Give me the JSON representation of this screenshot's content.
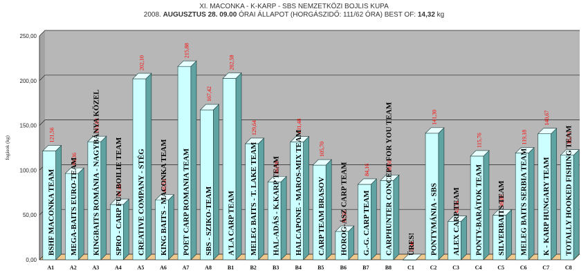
{
  "chart_data": {
    "type": "bar",
    "title": "XI. MACONKA - K-KARP - SBS NEMZETKÖZI BOJLIS KUPA",
    "subtitle": {
      "prefix": "2008.",
      "date": "AUGUSZTUS 28. 09.00",
      "middle": "ÓRAI ÁLLAPOT (HORGÁSZIDŐ: 111/62 ÓRA) BEST OF:",
      "best": "14,32",
      "unit": "kg"
    },
    "ylabel": "fogások (kg)",
    "xlabel": "",
    "ylim": [
      0,
      250
    ],
    "ytick_step": 50,
    "ytick_labels": [
      "0,00",
      "50,00",
      "100,00",
      "150,00",
      "200,00",
      "250,00"
    ],
    "grid": true,
    "categories": [
      "A1",
      "A2",
      "A3",
      "A4",
      "A5",
      "A6",
      "A7",
      "A8",
      "B1",
      "B2",
      "B3",
      "B4",
      "B5",
      "B6",
      "B7",
      "B8",
      "C1",
      "C2",
      "C3",
      "C4",
      "C5",
      "C6",
      "C7",
      "C8"
    ],
    "values": [
      121.56,
      96.36,
      131.82,
      61.68,
      202.1,
      66.56,
      215.88,
      167.42,
      202.58,
      129.64,
      86.9,
      131.48,
      105.7,
      31.58,
      84.16,
      88.5,
      0.0,
      141.3,
      42.74,
      115.76,
      49.82,
      119.18,
      140.67,
      116.76
    ],
    "value_labels": [
      "121,56",
      "96,36",
      "131,82",
      "61,68",
      "202,10",
      "66,56",
      "215,88",
      "167,42",
      "202,58",
      "129,64",
      "86,90",
      "131,48",
      "105,70",
      "31,58",
      "84,16",
      "88,50",
      "0,00",
      "141,30",
      "42,74",
      "115,76",
      "49,82",
      "119,18",
      "140,67",
      "116,76"
    ],
    "team_labels": [
      "BSHF MACONKA TEAM",
      "MEGA-BAITS EURO-TEAM",
      "KINGBAITS ROMÁNIA - NAGYBÁNYA KÖZEL",
      "SPRO - CARP FUN BOILIE TEAM",
      "CREATIVE COMPANY - STÉG",
      "KING BAITS - MACONKA TEAM",
      "POET CARP ROMANIA TEAM",
      "SBS - SZIKO-TEAM",
      "A'LA CARP TEAM",
      "MELEG BAITS - T. LAKE TEAM",
      "HAL-ADÁS - K.KARP TEAM",
      "HALCAPONE - MAROS-MIX TEAM",
      "CARP TEAM BRASOV",
      "HOROG-ÁSZ CARP TEAM",
      "G.-G. CARP TEAM",
      "CARPHUNTER CONCEPT FOR YOU TEAM",
      "ÜRES!",
      "PONTYMÁNIA - SBS",
      "ALEX CARP TEAM",
      "PONTY-BARÁTOK TEAM",
      "SILVERBAITS TEAM",
      "MELEG BAITS SERBIA TEAM",
      "K - KARP HUNGARY TEAM",
      "TOTALLY HOOKED FISHING TEAM"
    ],
    "colors": {
      "bar_front": "#ccffff",
      "bar_top": "#e8ffff",
      "bar_side": "#5fa3a3",
      "wall": "#b7b7b7",
      "floor": "#f0c98e",
      "value_label": "#ff0000",
      "grid": "#222222"
    }
  }
}
